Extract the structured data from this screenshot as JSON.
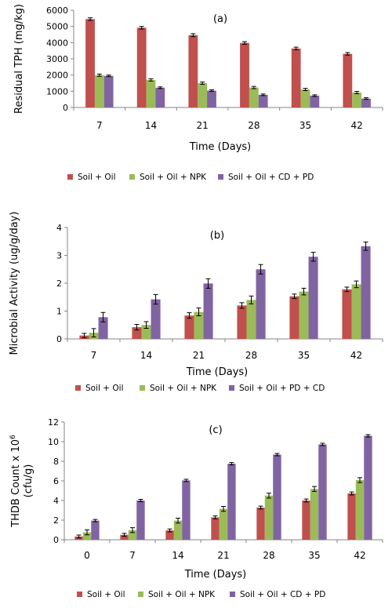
{
  "chart_data": [
    {
      "type": "bar",
      "panel_label": "(a)",
      "categories": [
        "7",
        "14",
        "21",
        "28",
        "35",
        "42"
      ],
      "xlabel": "Time (Days)",
      "ylabel": "Residual TPH (mg/kg)",
      "ylim": [
        0,
        6000
      ],
      "yticks": [
        "0",
        "1000",
        "2000",
        "3000",
        "4000",
        "5000",
        "6000"
      ],
      "grid": false,
      "legend_position": "bottom",
      "series": [
        {
          "name": "Soil + Oil",
          "color": "#c0504d",
          "values": [
            5450,
            4920,
            4460,
            3980,
            3640,
            3310
          ],
          "errors": [
            80,
            80,
            90,
            80,
            80,
            80
          ]
        },
        {
          "name": "Soil + Oil + NPK",
          "color": "#9bbb59",
          "values": [
            1990,
            1700,
            1500,
            1230,
            1110,
            920
          ],
          "errors": [
            70,
            70,
            70,
            70,
            70,
            70
          ]
        },
        {
          "name": "Soil + Oil + CD + PD",
          "color": "#8064a2",
          "values": [
            1950,
            1220,
            1040,
            780,
            730,
            550
          ],
          "errors": [
            50,
            50,
            50,
            50,
            50,
            50
          ]
        }
      ]
    },
    {
      "type": "bar",
      "panel_label": "(b)",
      "categories": [
        "7",
        "14",
        "21",
        "28",
        "35",
        "42"
      ],
      "xlabel": "Time (Days)",
      "ylabel": "Microbial Activity (ug/g/day)",
      "ylim": [
        0,
        4
      ],
      "yticks": [
        "0",
        "1",
        "2",
        "3",
        "4"
      ],
      "grid": false,
      "legend_position": "bottom",
      "series": [
        {
          "name": "Soil + Oil",
          "color": "#c0504d",
          "values": [
            0.12,
            0.42,
            0.84,
            1.2,
            1.53,
            1.78
          ],
          "errors": [
            0.08,
            0.1,
            0.1,
            0.1,
            0.08,
            0.08
          ]
        },
        {
          "name": "Soil + Oil + NPK",
          "color": "#9bbb59",
          "values": [
            0.22,
            0.5,
            0.97,
            1.4,
            1.7,
            1.96
          ],
          "errors": [
            0.15,
            0.12,
            0.14,
            0.14,
            0.12,
            0.12
          ]
        },
        {
          "name": "Soil + Oil + PD + CD",
          "color": "#8064a2",
          "values": [
            0.78,
            1.42,
            1.99,
            2.5,
            2.95,
            3.33
          ],
          "errors": [
            0.17,
            0.17,
            0.17,
            0.17,
            0.16,
            0.15
          ]
        }
      ]
    },
    {
      "type": "bar",
      "panel_label": "(c)",
      "categories": [
        "0",
        "7",
        "14",
        "21",
        "28",
        "35",
        "42"
      ],
      "xlabel": "Time (Days)",
      "ylabel_prefix": "THDB Count x 10",
      "ylabel_exp": "6",
      "ylabel_unit": "(cfu/g)",
      "ylim": [
        0,
        12
      ],
      "yticks": [
        "0",
        "2",
        "4",
        "6",
        "8",
        "10",
        "12"
      ],
      "grid": false,
      "legend_position": "bottom",
      "series": [
        {
          "name": "Soil + Oil",
          "color": "#c0504d",
          "values": [
            0.33,
            0.5,
            0.95,
            2.28,
            3.28,
            4.0,
            4.72
          ],
          "errors": [
            0.15,
            0.15,
            0.15,
            0.15,
            0.15,
            0.15,
            0.15
          ]
        },
        {
          "name": "Soil + Oil + NPK",
          "color": "#9bbb59",
          "values": [
            0.75,
            0.98,
            1.95,
            3.15,
            4.5,
            5.18,
            6.08
          ],
          "errors": [
            0.25,
            0.25,
            0.25,
            0.25,
            0.25,
            0.25,
            0.25
          ]
        },
        {
          "name": "Soil + Oil + CD + PD",
          "color": "#8064a2",
          "values": [
            1.95,
            4.0,
            6.05,
            7.75,
            8.68,
            9.72,
            10.6
          ],
          "errors": [
            0.12,
            0.12,
            0.12,
            0.12,
            0.12,
            0.12,
            0.12
          ]
        }
      ]
    }
  ]
}
